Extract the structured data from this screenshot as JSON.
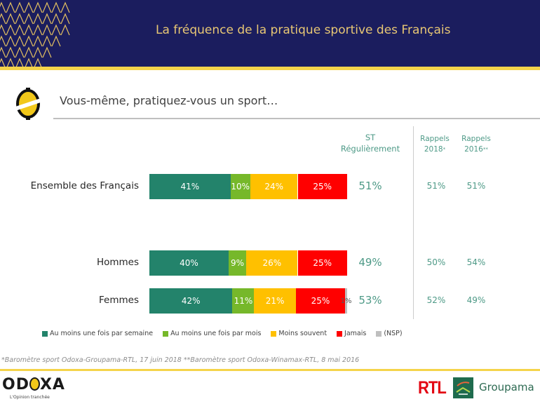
{
  "header": {
    "title": "La fréquence de la pratique sportive des Français"
  },
  "question": "Vous-même, pratiquez-vous un sport…",
  "columns": {
    "st": [
      "ST",
      "Régulièrement"
    ],
    "rappel_2018": [
      "Rappels",
      "2018",
      "*"
    ],
    "rappel_2016": [
      "Rappels",
      "2016",
      "**"
    ]
  },
  "colors": {
    "Au moins une fois par semaine": "#23836b",
    "Au moins une fois par mois": "#76b82a",
    "Moins souvent": "#ffc000",
    "Jamais": "#ff0000",
    "(NSP)": "#bfbfbf"
  },
  "chart_data": {
    "type": "bar",
    "orientation": "horizontal-stacked-100",
    "title": "La fréquence de la pratique sportive des Français",
    "subtitle": "Vous-même, pratiquez-vous un sport…",
    "categories": [
      "Ensemble des Français",
      "Hommes",
      "Femmes"
    ],
    "series": [
      {
        "name": "Au moins une fois par semaine",
        "values": [
          41,
          40,
          42
        ]
      },
      {
        "name": "Au moins une fois par mois",
        "values": [
          10,
          9,
          11
        ]
      },
      {
        "name": "Moins souvent",
        "values": [
          24,
          26,
          21
        ]
      },
      {
        "name": "Jamais",
        "values": [
          25,
          25,
          25
        ]
      },
      {
        "name": "(NSP)",
        "values": [
          0,
          0,
          1
        ]
      }
    ],
    "labels": [
      [
        "41%",
        "10%",
        "24%",
        "25%",
        ""
      ],
      [
        "40%",
        "9%",
        "26%",
        "25%",
        ""
      ],
      [
        "42%",
        "11%",
        "21%",
        "25%",
        "1%"
      ]
    ],
    "st_regulierement": [
      "51%",
      "49%",
      "53%"
    ],
    "rappels_2018": [
      "51%",
      "50%",
      "52%"
    ],
    "rappels_2016": [
      "51%",
      "54%",
      "49%"
    ],
    "legend": [
      "Au moins une fois par semaine",
      "Au moins une fois par mois",
      "Moins souvent",
      "Jamais",
      "(NSP)"
    ],
    "legend_position": "bottom",
    "xlim": [
      0,
      100
    ]
  },
  "footnote": "*Baromètre sport Odoxa-Groupama-RTL, 17 juin 2018 **Baromètre sport Odoxa-Winamax-RTL, 8 mai 2016",
  "footer": {
    "odoxa_pre": "OD",
    "odoxa_post": "XA",
    "odoxa_tagline": "L'Opinion tranchée",
    "rtl": "RTL",
    "groupama": "Groupama"
  }
}
